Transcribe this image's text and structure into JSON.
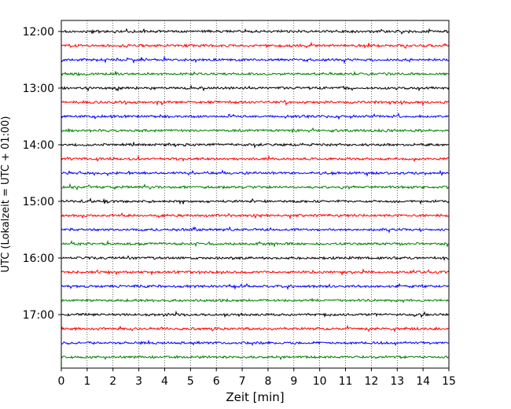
{
  "chart_data": {
    "type": "line",
    "title": "",
    "xlabel": "Zeit  [min]",
    "ylabel": "UTC (Lokalzeit = UTC + 01:00)",
    "xlim": [
      0,
      15
    ],
    "x_ticks": [
      "0",
      "1",
      "2",
      "3",
      "4",
      "5",
      "6",
      "7",
      "8",
      "9",
      "10",
      "11",
      "12",
      "13",
      "14",
      "15"
    ],
    "y_start_hour": 12,
    "y_end_hour": 18,
    "trace_interval_minutes": 15,
    "y_tick_labels": [
      "12:00",
      "13:00",
      "14:00",
      "15:00",
      "16:00",
      "17:00"
    ],
    "trace_colors": [
      "#000000",
      "#ff0000",
      "#0000ff",
      "#008000"
    ],
    "grid": "vertical dotted",
    "legend": "none"
  }
}
